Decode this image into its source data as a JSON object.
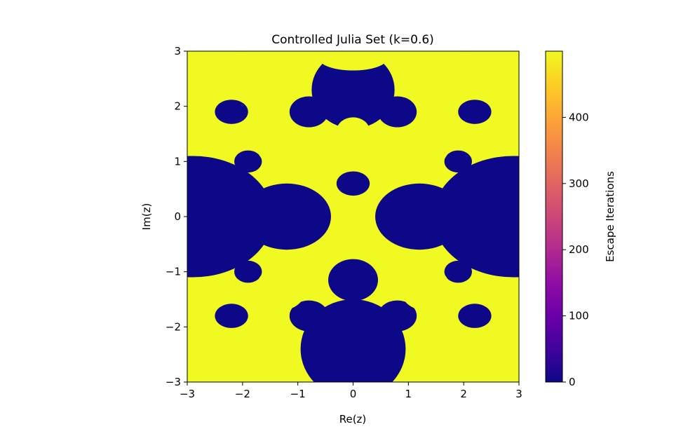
{
  "chart_data": {
    "type": "heatmap",
    "title": "Controlled Julia Set (k=0.6)",
    "xlabel": "Re(z)",
    "ylabel": "Im(z)",
    "xlim": [
      -3,
      3
    ],
    "ylim": [
      -3,
      3
    ],
    "x_ticks": [
      "−3",
      "−2",
      "−1",
      "0",
      "1",
      "2",
      "3"
    ],
    "y_ticks": [
      "3",
      "2",
      "1",
      "0",
      "−1",
      "−2",
      "−3"
    ],
    "colorbar": {
      "label": "Escape Iterations",
      "colormap": "plasma",
      "range": [
        0,
        500
      ],
      "ticks": [
        "0",
        "100",
        "200",
        "300",
        "400"
      ]
    },
    "colors": {
      "low": "#0d0887",
      "high": "#f0f921"
    }
  }
}
